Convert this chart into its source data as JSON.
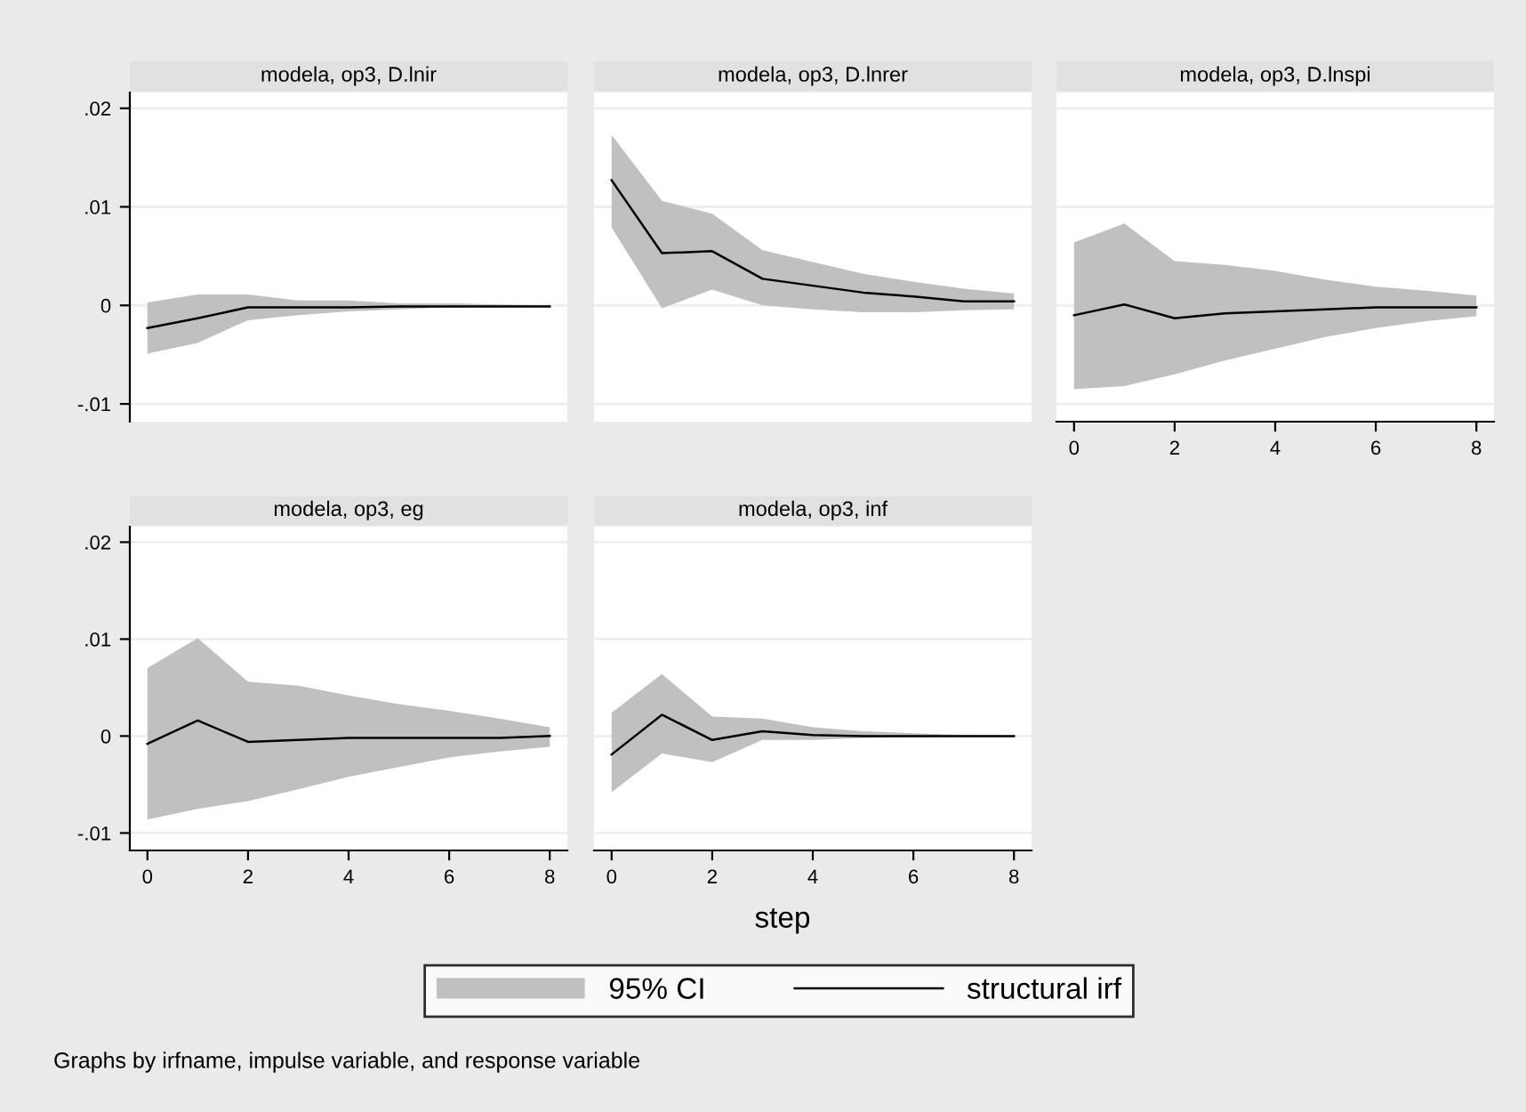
{
  "chart_data": [
    {
      "type": "line",
      "title": "modela, op3, D.lnir",
      "x": [
        0,
        1,
        2,
        3,
        4,
        5,
        6,
        7,
        8
      ],
      "xlim": [
        -0.35,
        8.35
      ],
      "ylim": [
        -0.0118,
        0.0216
      ],
      "yticks": [
        {
          "value": -0.01,
          "label": "-.01"
        },
        0,
        {
          "value": 0.01,
          "label": ".01"
        },
        {
          "value": 0.02,
          "label": ".02"
        }
      ],
      "tick_labels": "y",
      "grid": "y",
      "legend": "bottom",
      "annotations": [
        "95% CI"
      ],
      "series": [
        {
          "name": "structural irf",
          "color": "#000000",
          "values": [
            -0.0023,
            -0.0013,
            -0.0002,
            -0.0002,
            -0.0002,
            -0.0001,
            -0.0001,
            -0.0001,
            -0.0001
          ],
          "lower": [
            -0.0049,
            -0.0038,
            -0.0015,
            -0.001,
            -0.0006,
            -0.0004,
            -0.0002,
            -0.0001,
            -0.0001
          ],
          "upper": [
            0.0003,
            0.0011,
            0.0011,
            0.0005,
            0.0005,
            0.0002,
            0.0002,
            0.0001,
            0.0
          ]
        }
      ]
    },
    {
      "type": "line",
      "title": "modela, op3, D.lnrer",
      "x": [
        0,
        1,
        2,
        3,
        4,
        5,
        6,
        7,
        8
      ],
      "xlim": [
        -0.35,
        8.35
      ],
      "ylim": [
        -0.0118,
        0.0216
      ],
      "yticks": [
        {
          "value": -0.01,
          "label": null
        },
        {
          "value": 0,
          "label": null
        },
        {
          "value": 0.01,
          "label": null
        },
        {
          "value": 0.02,
          "label": null
        }
      ],
      "tick_labels": false,
      "grid": "y",
      "series": [
        {
          "color": "#000000",
          "values": [
            0.0127,
            0.0053,
            0.0055,
            0.0027,
            0.002,
            0.0013,
            0.0009,
            0.0004,
            0.0004
          ],
          "lower": [
            0.0079,
            -0.0003,
            0.0016,
            0.0,
            -0.0004,
            -0.0007,
            -0.0007,
            -0.0005,
            -0.0004
          ],
          "upper": [
            0.0173,
            0.0106,
            0.0093,
            0.0056,
            0.0044,
            0.0032,
            0.0024,
            0.0017,
            0.0012
          ]
        }
      ]
    },
    {
      "type": "line",
      "title": "modela, op3, D.lnspi",
      "x": [
        0,
        1,
        2,
        3,
        4,
        5,
        6,
        7,
        8
      ],
      "xlim": [
        -0.35,
        8.35
      ],
      "ylim": [
        -0.0118,
        0.0216
      ],
      "xticks": [
        0,
        2,
        4,
        6,
        8
      ],
      "yticks": [
        {
          "value": -0.01,
          "label": null
        },
        {
          "value": 0,
          "label": null
        },
        {
          "value": 0.01,
          "label": null
        },
        {
          "value": 0.02,
          "label": null
        }
      ],
      "tick_labels": "x",
      "grid": "y",
      "series": [
        {
          "color": "#000000",
          "values": [
            -0.001,
            0.0001,
            -0.0013,
            -0.0008,
            -0.0006,
            -0.0004,
            -0.0002,
            -0.0002,
            -0.0002
          ],
          "lower": [
            -0.0085,
            -0.0082,
            -0.007,
            -0.0056,
            -0.0044,
            -0.0032,
            -0.0023,
            -0.0016,
            -0.0011
          ],
          "upper": [
            0.0064,
            0.0083,
            0.0045,
            0.0041,
            0.0035,
            0.0026,
            0.0019,
            0.0015,
            0.001
          ]
        }
      ]
    },
    {
      "type": "line",
      "title": "modela, op3, eg",
      "x": [
        0,
        1,
        2,
        3,
        4,
        5,
        6,
        7,
        8
      ],
      "xlim": [
        -0.35,
        8.35
      ],
      "ylim": [
        -0.0118,
        0.0216
      ],
      "xticks": [
        0,
        2,
        4,
        6,
        8
      ],
      "yticks": [
        {
          "value": -0.01,
          "label": "-.01"
        },
        0,
        {
          "value": 0.01,
          "label": ".01"
        },
        {
          "value": 0.02,
          "label": ".02"
        }
      ],
      "grid": "y",
      "series": [
        {
          "color": "#000000",
          "values": [
            -0.0008,
            0.0016,
            -0.0006,
            -0.0004,
            -0.0002,
            -0.0002,
            -0.0002,
            -0.0002,
            0.0
          ],
          "lower": [
            -0.0086,
            -0.0075,
            -0.0067,
            -0.0055,
            -0.0042,
            -0.0032,
            -0.0022,
            -0.0016,
            -0.0011
          ],
          "upper": [
            0.007,
            0.0101,
            0.0056,
            0.0052,
            0.0042,
            0.0033,
            0.0026,
            0.0018,
            0.0009
          ]
        }
      ]
    },
    {
      "type": "line",
      "title": "modela, op3, inf",
      "x": [
        0,
        1,
        2,
        3,
        4,
        5,
        6,
        7,
        8
      ],
      "xlim": [
        -0.35,
        8.35
      ],
      "ylim": [
        -0.0118,
        0.0216
      ],
      "xticks": [
        0,
        2,
        4,
        6,
        8
      ],
      "yticks": [
        {
          "value": -0.01,
          "label": null
        },
        {
          "value": 0,
          "label": null
        },
        {
          "value": 0.01,
          "label": null
        },
        {
          "value": 0.02,
          "label": null
        }
      ],
      "tick_labels": "x",
      "grid": "y",
      "xlabel": "step",
      "annotations": [
        "Graphs by irfname, impulse variable, and response variable"
      ],
      "series": [
        {
          "color": "#000000",
          "values": [
            -0.0019,
            0.0022,
            -0.0004,
            0.0005,
            0.0001,
            0.0,
            0.0,
            0.0,
            0.0
          ],
          "lower": [
            -0.0058,
            -0.0018,
            -0.0027,
            -0.0004,
            -0.0004,
            -0.0002,
            -0.0001,
            0.0,
            0.0
          ],
          "upper": [
            0.0024,
            0.0064,
            0.002,
            0.0018,
            0.0009,
            0.0005,
            0.0003,
            0.0001,
            0.0
          ]
        }
      ]
    }
  ]
}
